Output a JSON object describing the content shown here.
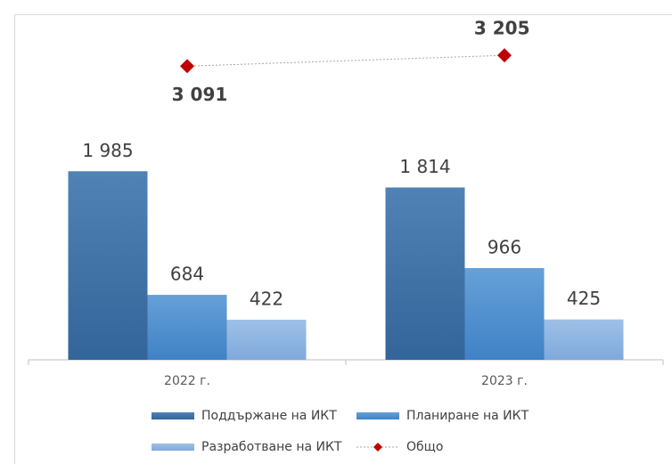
{
  "chart_data": {
    "type": "bar",
    "categories": [
      "2022 г.",
      "2023 г."
    ],
    "ylim": [
      0,
      3600
    ],
    "series": [
      {
        "name": "Поддържане на ИКТ",
        "color": "#3f72a6",
        "values": [
          1985,
          1814
        ],
        "value_labels": [
          "1 985",
          "1 814"
        ]
      },
      {
        "name": "Планиране на ИКТ",
        "color": "#4f90cf",
        "values": [
          684,
          966
        ],
        "value_labels": [
          "684",
          "966"
        ]
      },
      {
        "name": "Разработване на ИКТ",
        "color": "#8db4e2",
        "values": [
          422,
          425
        ],
        "value_labels": [
          "422",
          "425"
        ]
      },
      {
        "name": "Общо",
        "type": "line",
        "color": "#c00000",
        "values": [
          3091,
          3205
        ],
        "value_labels": [
          "3 091",
          "3 205"
        ]
      }
    ]
  }
}
